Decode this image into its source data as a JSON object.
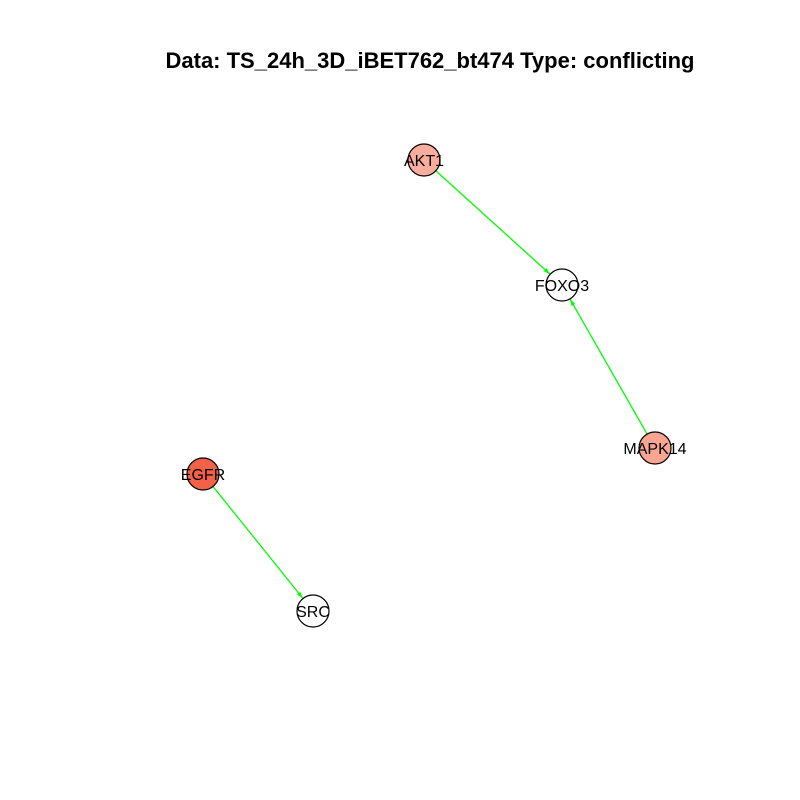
{
  "title": "Data: TS_24h_3D_iBET762_bt474 Type: conflicting",
  "colors": {
    "edge": "#00ff00",
    "node_stroke": "#000000",
    "background": "#ffffff"
  },
  "nodes": [
    {
      "id": "AKT1",
      "label": "AKT1",
      "fill": "#f9ad9d"
    },
    {
      "id": "FOXO3",
      "label": "FOXO3",
      "fill": "#ffffff"
    },
    {
      "id": "MAPK14",
      "label": "MAPK14",
      "fill": "#f9a592"
    },
    {
      "id": "EGFR",
      "label": "EGFR",
      "fill": "#f26148"
    },
    {
      "id": "SRC",
      "label": "SRC",
      "fill": "#ffffff"
    }
  ],
  "edges": [
    {
      "source": "AKT1",
      "target": "FOXO3",
      "arrow": "forward"
    },
    {
      "source": "MAPK14",
      "target": "FOXO3",
      "arrow": "forward"
    },
    {
      "source": "EGFR",
      "target": "SRC",
      "arrow": "forward"
    }
  ]
}
